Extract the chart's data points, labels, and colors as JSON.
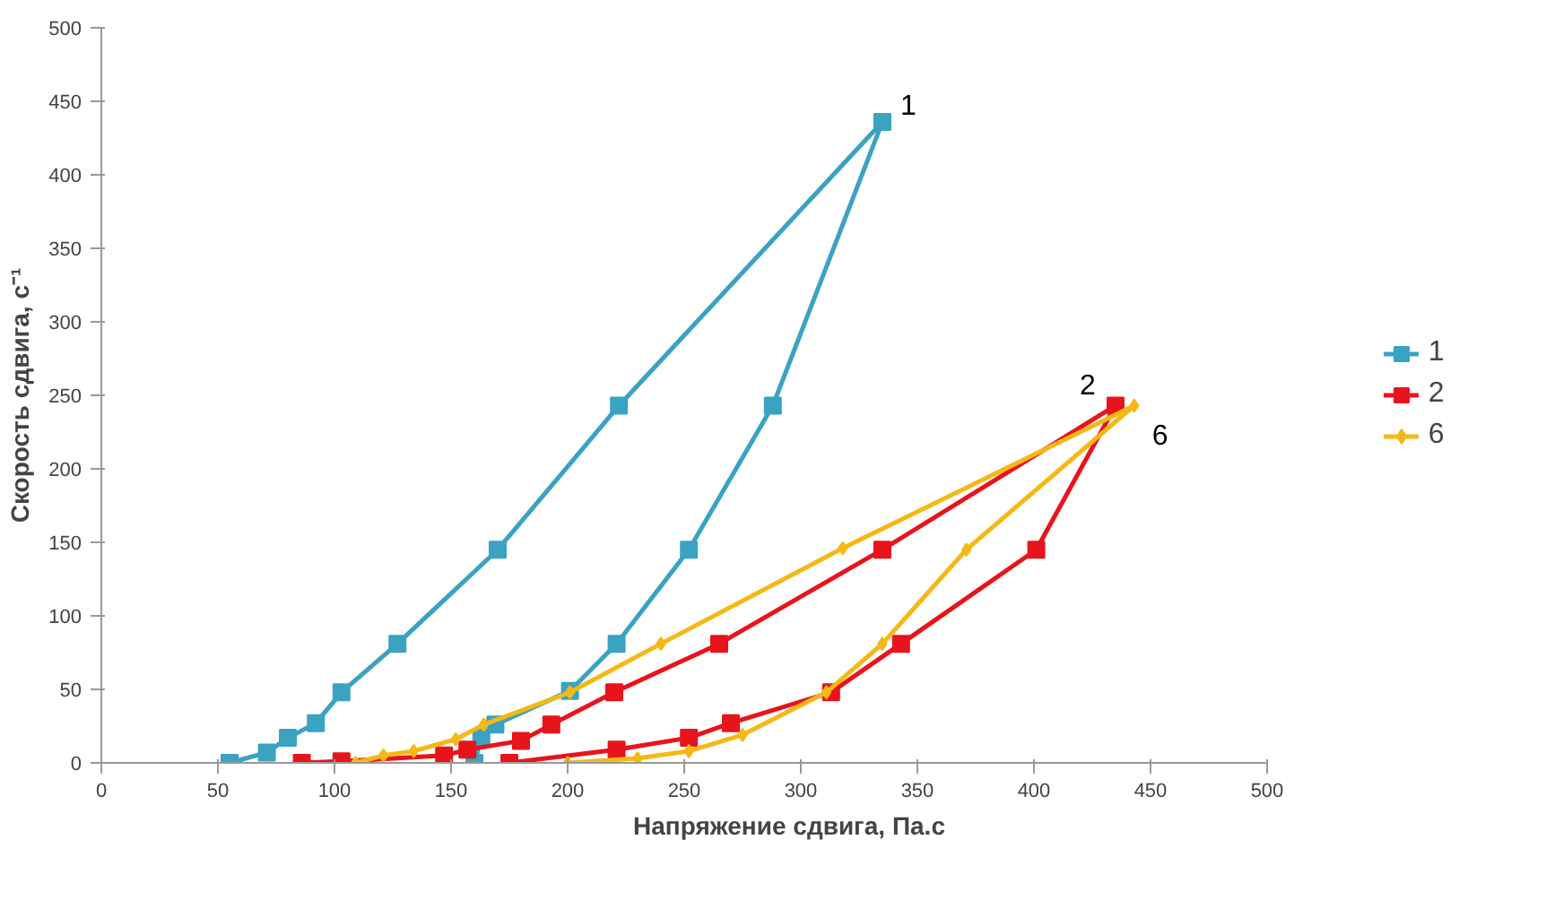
{
  "chart_data": {
    "type": "line",
    "xlabel": "Напряжение сдвига, Па.с",
    "ylabel": "Скорость сдвига, с⁻¹",
    "xlim": [
      0,
      500
    ],
    "ylim": [
      0,
      500
    ],
    "xticks": [
      0,
      50,
      100,
      150,
      200,
      250,
      300,
      350,
      400,
      450,
      500
    ],
    "yticks": [
      0,
      50,
      100,
      150,
      200,
      250,
      300,
      350,
      400,
      450,
      500
    ],
    "grid": false,
    "legend": "right",
    "series": [
      {
        "name": "1",
        "color": "#3aa3c2",
        "marker": "square",
        "x": [
          160,
          163,
          169,
          201,
          221,
          252,
          288,
          335,
          222,
          170,
          127,
          103,
          92,
          80,
          71,
          55
        ],
        "values": [
          0,
          17,
          26,
          49,
          81,
          145,
          243,
          436,
          243,
          145,
          81,
          48,
          27,
          17,
          7,
          0
        ]
      },
      {
        "name": "2",
        "color": "#e8141c",
        "marker": "square",
        "x": [
          86,
          103,
          147,
          157,
          180,
          193,
          220,
          265,
          335,
          435,
          401,
          343,
          313,
          270,
          252,
          221,
          175
        ],
        "values": [
          0,
          1,
          5,
          9,
          15,
          26,
          48,
          81,
          145,
          243,
          145,
          81,
          48,
          27,
          17,
          9,
          0
        ]
      },
      {
        "name": "6",
        "color": "#f5b815",
        "marker": "diamond",
        "x": [
          109,
          121,
          134,
          152,
          164,
          201,
          240,
          318,
          443,
          371,
          335,
          311,
          275,
          252,
          230,
          200
        ],
        "values": [
          0,
          5,
          8,
          16,
          26,
          48,
          81,
          146,
          243,
          145,
          81,
          48,
          19,
          8,
          3,
          0
        ]
      }
    ],
    "annotations": [
      "1",
      "2",
      "6"
    ]
  }
}
